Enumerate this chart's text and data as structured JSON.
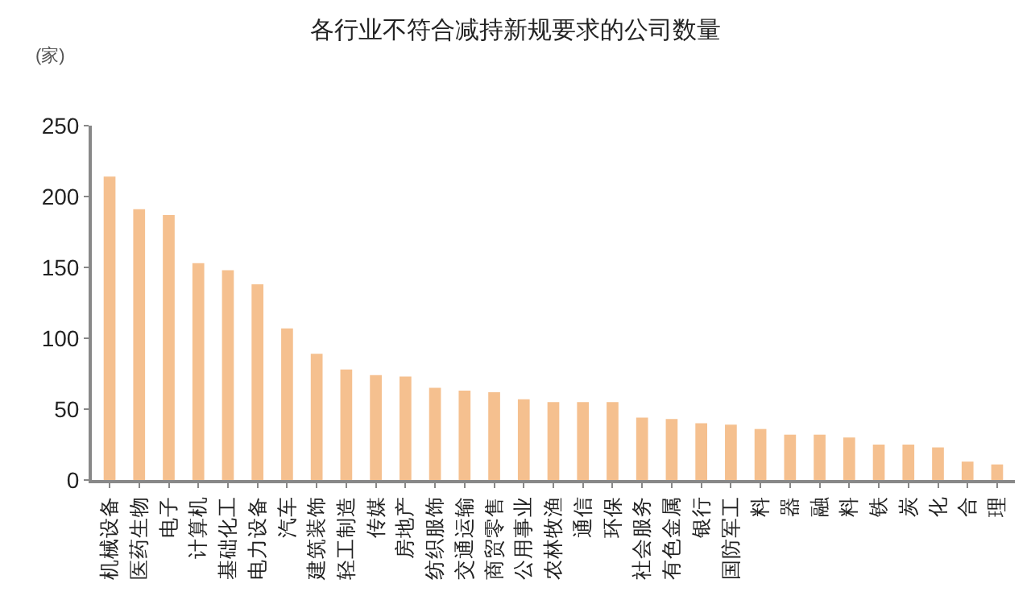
{
  "chart_data": {
    "type": "bar",
    "title": "各行业不符合减持新规要求的公司数量",
    "ylabel": "(家)",
    "categories": [
      "机械设备",
      "医药生物",
      "电子",
      "计算机",
      "基础化工",
      "电力设备",
      "汽车",
      "建筑装饰",
      "轻工制造",
      "传媒",
      "房地产",
      "纺织服饰",
      "交通运输",
      "商贸零售",
      "公用事业",
      "农林牧渔",
      "通信",
      "环保",
      "社会服务",
      "有色金属",
      "银行",
      "国防军工",
      "料",
      "器",
      "融",
      "料",
      "铁",
      "炭",
      "化",
      "合",
      "理"
    ],
    "values": [
      214,
      191,
      187,
      153,
      148,
      138,
      107,
      89,
      78,
      74,
      73,
      65,
      63,
      62,
      57,
      55,
      55,
      55,
      44,
      43,
      40,
      39,
      36,
      32,
      32,
      30,
      25,
      25,
      23,
      13,
      11
    ],
    "color": "#f5c08f",
    "ylim": [
      0,
      250
    ],
    "yticks": [
      0,
      50,
      100,
      150,
      200,
      250
    ],
    "grid": false,
    "legend": false
  }
}
